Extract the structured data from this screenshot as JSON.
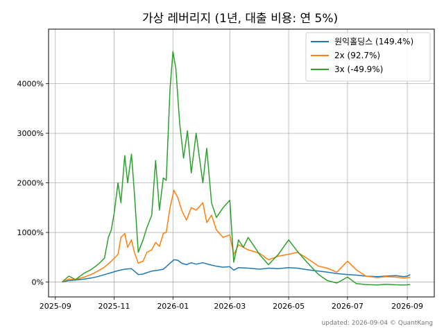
{
  "chart_data": {
    "type": "line",
    "title": "가상 레버리지 (1년, 대출 비용: 연 5%)",
    "xlabel": "",
    "ylabel": "",
    "x_ticks": [
      "2025-09",
      "2025-11",
      "2026-01",
      "2026-03",
      "2026-05",
      "2026-07",
      "2026-09"
    ],
    "y_ticks": [
      "0%",
      "1000%",
      "2000%",
      "3000%",
      "4000%"
    ],
    "y_tick_values": [
      0,
      1000,
      2000,
      3000,
      4000
    ],
    "xlim": [
      "2025-08-25",
      "2026-09-29"
    ],
    "ylim": [
      -300,
      5100
    ],
    "grid": true,
    "legend_position": "top-right",
    "footer": "updated: 2026-09-04 © QuantKang",
    "series": [
      {
        "name": "원익홀딩스 (149.4%)",
        "color": "#1f77b4",
        "points": [
          [
            "2025-09-08",
            0
          ],
          [
            "2025-09-15",
            30
          ],
          [
            "2025-09-22",
            40
          ],
          [
            "2025-10-01",
            60
          ],
          [
            "2025-10-08",
            80
          ],
          [
            "2025-10-15",
            110
          ],
          [
            "2025-10-22",
            150
          ],
          [
            "2025-10-29",
            190
          ],
          [
            "2025-11-05",
            230
          ],
          [
            "2025-11-12",
            260
          ],
          [
            "2025-11-19",
            270
          ],
          [
            "2025-11-22",
            220
          ],
          [
            "2025-11-26",
            150
          ],
          [
            "2025-12-01",
            160
          ],
          [
            "2025-12-05",
            190
          ],
          [
            "2025-12-10",
            220
          ],
          [
            "2025-12-17",
            240
          ],
          [
            "2025-12-22",
            260
          ],
          [
            "2025-12-25",
            310
          ],
          [
            "2025-12-29",
            380
          ],
          [
            "2026-01-02",
            450
          ],
          [
            "2026-01-06",
            440
          ],
          [
            "2026-01-10",
            380
          ],
          [
            "2026-01-15",
            350
          ],
          [
            "2026-01-20",
            390
          ],
          [
            "2026-01-25",
            360
          ],
          [
            "2026-02-01",
            390
          ],
          [
            "2026-02-08",
            350
          ],
          [
            "2026-02-15",
            320
          ],
          [
            "2026-02-22",
            300
          ],
          [
            "2026-03-01",
            310
          ],
          [
            "2026-03-05",
            240
          ],
          [
            "2026-03-10",
            290
          ],
          [
            "2026-03-20",
            280
          ],
          [
            "2026-04-01",
            260
          ],
          [
            "2026-04-10",
            280
          ],
          [
            "2026-04-20",
            270
          ],
          [
            "2026-05-01",
            290
          ],
          [
            "2026-05-10",
            280
          ],
          [
            "2026-05-20",
            250
          ],
          [
            "2026-06-01",
            220
          ],
          [
            "2026-06-10",
            200
          ],
          [
            "2026-06-20",
            170
          ],
          [
            "2026-07-01",
            150
          ],
          [
            "2026-07-10",
            140
          ],
          [
            "2026-07-20",
            120
          ],
          [
            "2026-08-01",
            110
          ],
          [
            "2026-08-10",
            120
          ],
          [
            "2026-08-20",
            130
          ],
          [
            "2026-08-28",
            110
          ],
          [
            "2026-09-01",
            120
          ],
          [
            "2026-09-04",
            149.4
          ]
        ]
      },
      {
        "name": "2x (92.7%)",
        "color": "#ff7f0e",
        "points": [
          [
            "2025-09-08",
            0
          ],
          [
            "2025-09-15",
            60
          ],
          [
            "2025-09-22",
            50
          ],
          [
            "2025-10-01",
            100
          ],
          [
            "2025-10-08",
            150
          ],
          [
            "2025-10-15",
            220
          ],
          [
            "2025-10-22",
            300
          ],
          [
            "2025-10-29",
            420
          ],
          [
            "2025-11-05",
            560
          ],
          [
            "2025-11-08",
            900
          ],
          [
            "2025-11-12",
            980
          ],
          [
            "2025-11-15",
            700
          ],
          [
            "2025-11-19",
            850
          ],
          [
            "2025-11-22",
            600
          ],
          [
            "2025-11-26",
            380
          ],
          [
            "2025-12-01",
            420
          ],
          [
            "2025-12-05",
            600
          ],
          [
            "2025-12-10",
            650
          ],
          [
            "2025-12-14",
            800
          ],
          [
            "2025-12-18",
            720
          ],
          [
            "2025-12-22",
            980
          ],
          [
            "2025-12-25",
            1000
          ],
          [
            "2025-12-29",
            1500
          ],
          [
            "2026-01-02",
            1850
          ],
          [
            "2026-01-06",
            1700
          ],
          [
            "2026-01-10",
            1450
          ],
          [
            "2026-01-15",
            1250
          ],
          [
            "2026-01-20",
            1500
          ],
          [
            "2026-01-25",
            1450
          ],
          [
            "2026-02-01",
            1600
          ],
          [
            "2026-02-05",
            1200
          ],
          [
            "2026-02-10",
            1350
          ],
          [
            "2026-02-15",
            1050
          ],
          [
            "2026-02-22",
            900
          ],
          [
            "2026-03-01",
            950
          ],
          [
            "2026-03-05",
            550
          ],
          [
            "2026-03-10",
            750
          ],
          [
            "2026-03-20",
            650
          ],
          [
            "2026-04-01",
            580
          ],
          [
            "2026-04-10",
            450
          ],
          [
            "2026-04-20",
            520
          ],
          [
            "2026-05-01",
            560
          ],
          [
            "2026-05-10",
            600
          ],
          [
            "2026-05-20",
            480
          ],
          [
            "2026-06-01",
            320
          ],
          [
            "2026-06-10",
            280
          ],
          [
            "2026-06-20",
            200
          ],
          [
            "2026-07-01",
            420
          ],
          [
            "2026-07-10",
            250
          ],
          [
            "2026-07-20",
            120
          ],
          [
            "2026-08-01",
            90
          ],
          [
            "2026-08-10",
            110
          ],
          [
            "2026-08-20",
            100
          ],
          [
            "2026-08-28",
            80
          ],
          [
            "2026-09-01",
            90
          ],
          [
            "2026-09-04",
            92.7
          ]
        ]
      },
      {
        "name": "3x (-49.9%)",
        "color": "#2ca02c",
        "points": [
          [
            "2025-09-08",
            0
          ],
          [
            "2025-09-15",
            120
          ],
          [
            "2025-09-22",
            50
          ],
          [
            "2025-10-01",
            180
          ],
          [
            "2025-10-08",
            250
          ],
          [
            "2025-10-15",
            350
          ],
          [
            "2025-10-22",
            480
          ],
          [
            "2025-10-26",
            900
          ],
          [
            "2025-10-29",
            1050
          ],
          [
            "2025-11-01",
            1380
          ],
          [
            "2025-11-05",
            2000
          ],
          [
            "2025-11-08",
            1600
          ],
          [
            "2025-11-12",
            2550
          ],
          [
            "2025-11-15",
            2000
          ],
          [
            "2025-11-19",
            2580
          ],
          [
            "2025-11-22",
            1800
          ],
          [
            "2025-11-26",
            600
          ],
          [
            "2025-12-01",
            850
          ],
          [
            "2025-12-05",
            1100
          ],
          [
            "2025-12-10",
            1350
          ],
          [
            "2025-12-14",
            2450
          ],
          [
            "2025-12-18",
            1450
          ],
          [
            "2025-12-22",
            2100
          ],
          [
            "2025-12-25",
            2050
          ],
          [
            "2025-12-29",
            3900
          ],
          [
            "2026-01-01",
            4650
          ],
          [
            "2026-01-04",
            4300
          ],
          [
            "2026-01-08",
            3200
          ],
          [
            "2026-01-12",
            2500
          ],
          [
            "2026-01-16",
            3050
          ],
          [
            "2026-01-20",
            2200
          ],
          [
            "2026-01-25",
            3000
          ],
          [
            "2026-02-01",
            2000
          ],
          [
            "2026-02-05",
            2700
          ],
          [
            "2026-02-10",
            1600
          ],
          [
            "2026-02-15",
            1300
          ],
          [
            "2026-02-22",
            1500
          ],
          [
            "2026-03-01",
            1650
          ],
          [
            "2026-03-05",
            400
          ],
          [
            "2026-03-10",
            850
          ],
          [
            "2026-03-15",
            700
          ],
          [
            "2026-03-20",
            900
          ],
          [
            "2026-04-01",
            550
          ],
          [
            "2026-04-10",
            350
          ],
          [
            "2026-04-20",
            550
          ],
          [
            "2026-05-01",
            850
          ],
          [
            "2026-05-10",
            620
          ],
          [
            "2026-05-20",
            400
          ],
          [
            "2026-06-01",
            150
          ],
          [
            "2026-06-10",
            30
          ],
          [
            "2026-06-20",
            -20
          ],
          [
            "2026-07-01",
            100
          ],
          [
            "2026-07-10",
            -30
          ],
          [
            "2026-07-20",
            -50
          ],
          [
            "2026-08-01",
            -60
          ],
          [
            "2026-08-10",
            -45
          ],
          [
            "2026-08-20",
            -55
          ],
          [
            "2026-08-28",
            -60
          ],
          [
            "2026-09-01",
            -55
          ],
          [
            "2026-09-04",
            -49.9
          ]
        ]
      }
    ]
  }
}
